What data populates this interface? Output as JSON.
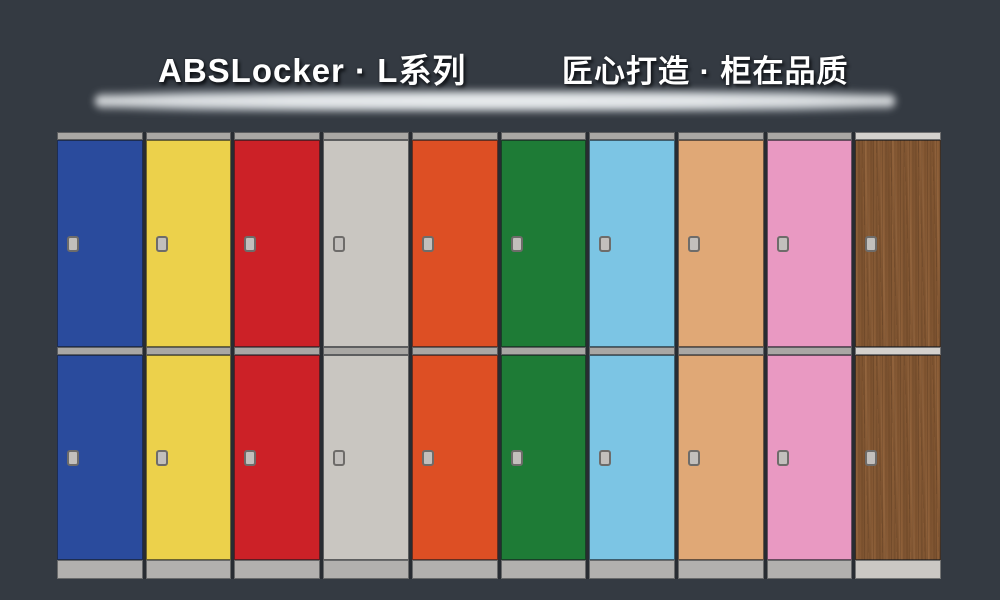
{
  "header": {
    "brand_title": "ABSLocker · L系列",
    "slogan": "匠心打造 · 柜在品质"
  },
  "decor": {
    "glow_bar": "metallic-divider-bar"
  },
  "colors": {
    "background": "#343a42",
    "column_gap": "#282c32",
    "trim_strip": "#a9a7a4",
    "plinth": "#b2b0ae",
    "wood_trim": "#d4d1cd",
    "wood_plinth": "#cbc8c4",
    "lock_fill": "#c2bfbc",
    "lock_border": "#6e6c6a",
    "headline_text": "#ffffff"
  },
  "lockers": {
    "column_count": 10,
    "doors_per_column": 2,
    "columns": [
      {
        "name": "blue",
        "color": "#2a4b9d"
      },
      {
        "name": "yellow",
        "color": "#ecd14b"
      },
      {
        "name": "red",
        "color": "#cc2127"
      },
      {
        "name": "light-gray",
        "color": "#c9c6c1"
      },
      {
        "name": "orange",
        "color": "#dd4f24"
      },
      {
        "name": "green",
        "color": "#1e7b36"
      },
      {
        "name": "sky-blue",
        "color": "#7cc5e4"
      },
      {
        "name": "tan",
        "color": "#e0a876"
      },
      {
        "name": "pink",
        "color": "#e999c2"
      },
      {
        "name": "wood",
        "color": "#8a5c36",
        "texture": "wood"
      }
    ]
  }
}
